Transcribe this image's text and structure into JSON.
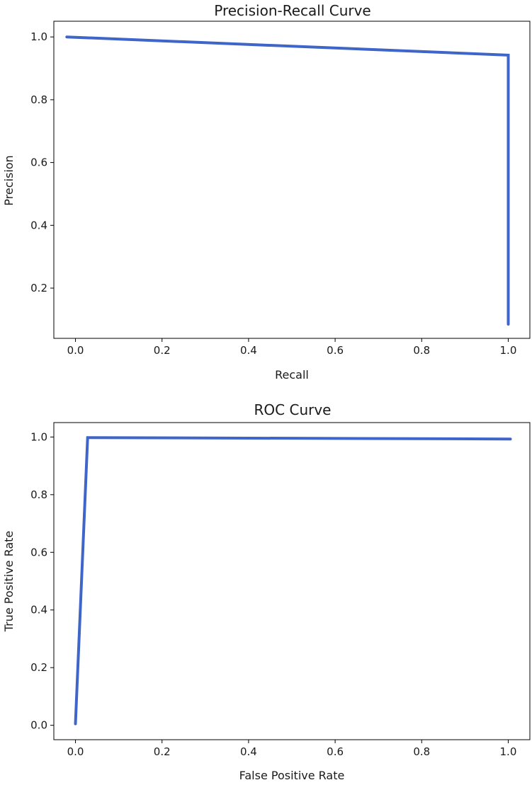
{
  "chart_data": [
    {
      "type": "line",
      "title": "Precision-Recall Curve",
      "xlabel": "Recall",
      "ylabel": "Precision",
      "xlim": [
        -0.05,
        1.05
      ],
      "ylim": [
        0.04,
        1.05
      ],
      "xticks": [
        0.0,
        0.2,
        0.4,
        0.6,
        0.8,
        1.0
      ],
      "yticks": [
        0.2,
        0.4,
        0.6,
        0.8,
        1.0
      ],
      "xtick_labels": [
        "0.0",
        "0.2",
        "0.4",
        "0.6",
        "0.8",
        "1.0"
      ],
      "ytick_labels": [
        "0.2",
        "0.4",
        "0.6",
        "0.8",
        "1.0"
      ],
      "grid": false,
      "series": [
        {
          "color": "#3f65c9",
          "x": [
            -0.02,
            1.0,
            1.0
          ],
          "y": [
            1.0,
            0.942,
            0.085
          ]
        }
      ]
    },
    {
      "type": "line",
      "title": "ROC Curve",
      "xlabel": "False Positive Rate",
      "ylabel": "True Positive Rate",
      "xlim": [
        -0.05,
        1.05
      ],
      "ylim": [
        -0.05,
        1.05
      ],
      "xticks": [
        0.0,
        0.2,
        0.4,
        0.6,
        0.8,
        1.0
      ],
      "yticks": [
        0.0,
        0.2,
        0.4,
        0.6,
        0.8,
        1.0
      ],
      "xtick_labels": [
        "0.0",
        "0.2",
        "0.4",
        "0.6",
        "0.8",
        "1.0"
      ],
      "ytick_labels": [
        "0.0",
        "0.2",
        "0.4",
        "0.6",
        "0.8",
        "1.0"
      ],
      "grid": false,
      "series": [
        {
          "color": "#3f65c9",
          "x": [
            0.0,
            0.028,
            1.005
          ],
          "y": [
            0.005,
            0.998,
            0.993
          ]
        }
      ]
    }
  ]
}
